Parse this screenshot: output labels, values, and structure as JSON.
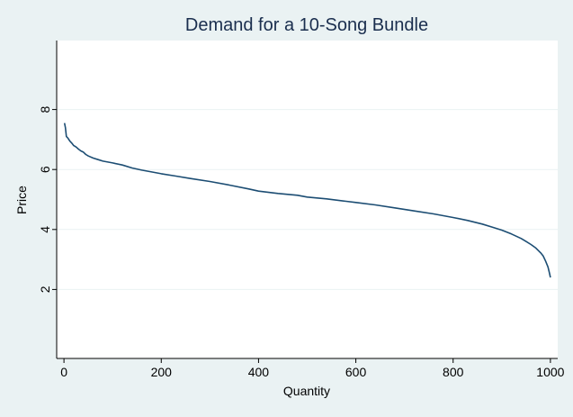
{
  "colors": {
    "background": "#eaf2f3",
    "plot_background": "#ffffff",
    "line": "#1c4d73",
    "gridline": "#eaf2f3",
    "title": "#1a2e4e"
  },
  "chart_data": {
    "type": "line",
    "title": "Demand for a 10-Song Bundle",
    "xlabel": "Quantity",
    "ylabel": "Price",
    "xlim": [
      -15,
      1015
    ],
    "ylim": [
      -0.3,
      10.3
    ],
    "xticks": [
      0,
      200,
      400,
      600,
      800,
      1000
    ],
    "xtick_labels": [
      "0",
      "200",
      "400",
      "600",
      "800",
      "1000"
    ],
    "yticks": [
      2,
      4,
      6,
      8
    ],
    "ytick_labels": [
      "2",
      "4",
      "6",
      "8"
    ],
    "grid": "horizontal",
    "legend": "none",
    "series": [
      {
        "x": [
          1,
          3,
          5,
          8,
          12,
          16,
          20,
          25,
          30,
          35,
          40,
          45,
          50,
          60,
          70,
          80,
          90,
          100,
          120,
          140,
          160,
          180,
          200,
          230,
          260,
          300,
          340,
          380,
          400,
          440,
          480,
          500,
          540,
          580,
          600,
          640,
          680,
          720,
          760,
          800,
          830,
          860,
          880,
          900,
          920,
          940,
          950,
          960,
          970,
          980,
          985,
          990,
          995,
          998,
          1000
        ],
        "y": [
          7.55,
          7.4,
          7.1,
          7.05,
          6.95,
          6.88,
          6.8,
          6.75,
          6.68,
          6.62,
          6.58,
          6.5,
          6.45,
          6.38,
          6.33,
          6.28,
          6.25,
          6.22,
          6.15,
          6.05,
          5.98,
          5.92,
          5.86,
          5.78,
          5.7,
          5.6,
          5.48,
          5.35,
          5.28,
          5.2,
          5.14,
          5.08,
          5.02,
          4.94,
          4.9,
          4.82,
          4.72,
          4.62,
          4.52,
          4.4,
          4.3,
          4.18,
          4.08,
          3.98,
          3.85,
          3.7,
          3.6,
          3.5,
          3.38,
          3.22,
          3.12,
          2.95,
          2.75,
          2.55,
          2.4
        ]
      }
    ]
  }
}
